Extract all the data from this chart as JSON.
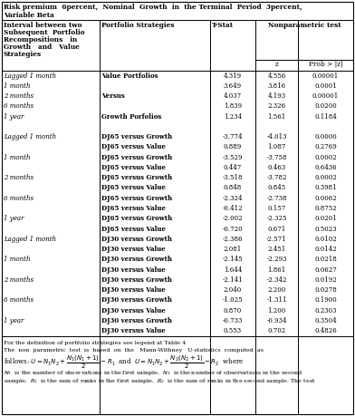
{
  "title_line1": "Risk premium  6percent,  Nominal  Growth  in  the Terminal  Period  3percent,",
  "title_line2": "Variable Beta",
  "rows": [
    [
      "Lagged 1 month",
      "Value Portfolios",
      "4.319",
      "4.556",
      "0.00001"
    ],
    [
      "1 month",
      "",
      "3.649",
      "3.816",
      "0.0001"
    ],
    [
      "2 months",
      "Versus",
      "4.037",
      "4.193",
      "0.00001"
    ],
    [
      "6 months",
      "",
      "1.839",
      "2.326",
      "0.0200"
    ],
    [
      "1 year",
      "Growth Porfolios",
      "1.234",
      "1.561",
      "0.1184"
    ],
    [
      "",
      "",
      "",
      "",
      ""
    ],
    [
      "Lagged 1 month",
      "DJ65 versus Growth",
      "-3.774",
      "-4.013",
      "0.0000"
    ],
    [
      "",
      "DJ65 versus Value",
      "0.889",
      "1.087",
      "0.2769"
    ],
    [
      "1 month",
      "DJ65 versus Growth",
      "-3.529",
      "-3.758",
      "0.0002"
    ],
    [
      "",
      "DJ65 versus Value",
      "0.447",
      "0.463",
      "0.6436"
    ],
    [
      "2 months",
      "DJ65 versus Growth",
      "-3.518",
      "-3.782",
      "0.0002"
    ],
    [
      "",
      "DJ65 versus Value",
      "0.848",
      "0.845",
      "0.3981"
    ],
    [
      "6 months",
      "DJ65 versus Growth",
      "-2.324",
      "-2.738",
      "0.0062"
    ],
    [
      "",
      "DJ65 versus Value",
      "-0.412",
      "0.157",
      "0.8752"
    ],
    [
      "1 year",
      "DJ65 versus Growth",
      "-2.002",
      "-2.325",
      "0.0201"
    ],
    [
      "",
      "DJ65 versus Value",
      "-0.720",
      "0.671",
      "0.5023"
    ],
    [
      "Lagged 1 month",
      "DJ30 versus Growth",
      "-2.386",
      "-2.571",
      "0.0102"
    ],
    [
      "",
      "DJ30 versus Value",
      "2.081",
      "2.451",
      "0.0142"
    ],
    [
      "1 month",
      "DJ30 versus Growth",
      "-2.145",
      "-2.293",
      "0.0218"
    ],
    [
      "",
      "DJ30 versus Value",
      "1.644",
      "1.861",
      "0.0627"
    ],
    [
      "2 months",
      "DJ30 versus Growth",
      "-2.141",
      "-2.342",
      "0.0192"
    ],
    [
      "",
      "DJ30 versus Value",
      "2.040",
      "2.200",
      "0.0278"
    ],
    [
      "6 months",
      "DJ30 versus Growth",
      "-1.025",
      "-1.311",
      "0.1900"
    ],
    [
      "",
      "DJ30 versus Value",
      "0.870",
      "1.200",
      "0.2303"
    ],
    [
      "1 year",
      "DJ30 versus Growth",
      "-0.733",
      "-0.934",
      "0.3504"
    ],
    [
      "",
      "DJ30 versus Value",
      "0.553",
      "0.702",
      "0.4826"
    ]
  ]
}
